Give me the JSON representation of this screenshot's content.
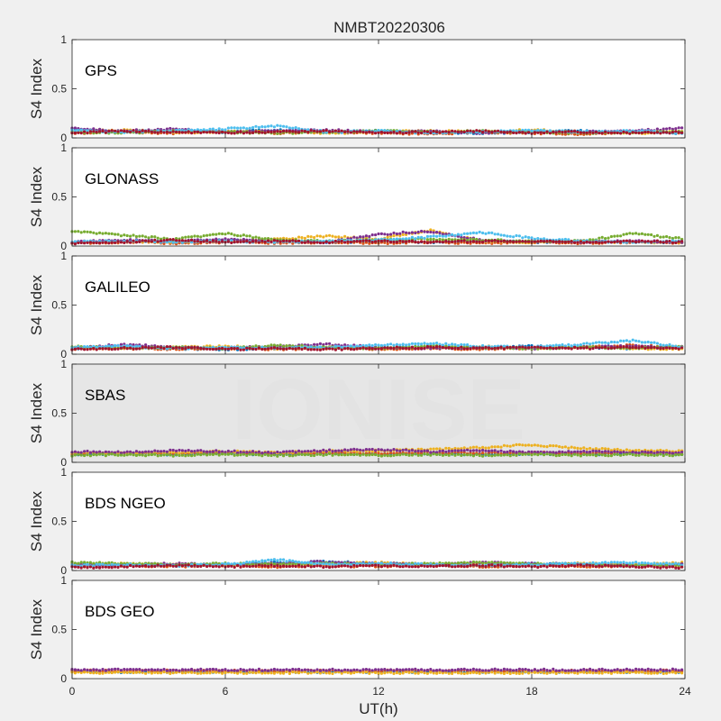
{
  "figure_title": "NMBT20220306",
  "watermark": "IONISE",
  "colors": {
    "background": "#f0f0f0",
    "axes_bg": "#ffffff",
    "sbas_axes_bg": "#e6e6e6",
    "axis": "#262626",
    "series": [
      "#0072BD",
      "#D95319",
      "#EDB120",
      "#7E2F8E",
      "#77AC30",
      "#4DBEEE",
      "#A2142F"
    ]
  },
  "chart_data": [
    {
      "type": "scatter",
      "panel_label": "GPS",
      "ylabel": "S4 Index",
      "xlabel": "",
      "xlim": [
        0,
        24
      ],
      "ylim": [
        0,
        1
      ],
      "xticks": [
        "0",
        "6",
        "12",
        "18",
        "24"
      ],
      "yticks": [
        "0",
        "0.5",
        "1"
      ],
      "series": [
        {
          "values": [
            0.09,
            0.06,
            0.07,
            0.06,
            0.08,
            0.06,
            0.07,
            0.06,
            0.05,
            0.06,
            0.07,
            0.06,
            0.05
          ]
        },
        {
          "values": [
            0.05,
            0.06,
            0.05,
            0.07,
            0.05,
            0.06,
            0.05,
            0.04,
            0.06,
            0.05,
            0.04,
            0.06,
            0.05
          ]
        },
        {
          "values": [
            0.07,
            0.08,
            0.06,
            0.06,
            0.07,
            0.05,
            0.06,
            0.07,
            0.06,
            0.08,
            0.06,
            0.05,
            0.06
          ]
        },
        {
          "values": [
            0.1,
            0.07,
            0.09,
            0.06,
            0.07,
            0.08,
            0.06,
            0.07,
            0.05,
            0.07,
            0.06,
            0.07,
            0.1
          ]
        },
        {
          "values": [
            0.06,
            0.05,
            0.07,
            0.06,
            0.05,
            0.06,
            0.07,
            0.06,
            0.07,
            0.06,
            0.05,
            0.06,
            0.06
          ]
        },
        {
          "values": [
            0.08,
            0.06,
            0.07,
            0.09,
            0.12,
            0.06,
            0.07,
            0.05,
            0.06,
            0.08,
            0.06,
            0.07,
            0.05
          ]
        },
        {
          "values": [
            0.05,
            0.07,
            0.06,
            0.05,
            0.06,
            0.07,
            0.05,
            0.06,
            0.07,
            0.05,
            0.06,
            0.05,
            0.06
          ]
        }
      ]
    },
    {
      "type": "scatter",
      "panel_label": "GLONASS",
      "ylabel": "S4 Index",
      "xlabel": "",
      "xlim": [
        0,
        24
      ],
      "ylim": [
        0,
        1
      ],
      "xticks": [
        "0",
        "6",
        "12",
        "18",
        "24"
      ],
      "yticks": [
        "0",
        "0.5",
        "1"
      ],
      "series": [
        {
          "values": [
            0.04,
            0.05,
            0.04,
            0.06,
            0.05,
            0.04,
            0.05,
            0.04,
            0.05,
            0.04,
            0.05,
            0.04,
            0.04
          ]
        },
        {
          "values": [
            0.03,
            0.04,
            0.03,
            0.04,
            0.03,
            0.04,
            0.03,
            0.04,
            0.03,
            0.04,
            0.03,
            0.04,
            0.03
          ]
        },
        {
          "values": [
            0.03,
            0.05,
            0.04,
            0.05,
            0.07,
            0.1,
            0.07,
            0.16,
            0.05,
            0.04,
            0.05,
            0.04,
            0.04
          ]
        },
        {
          "values": [
            0.04,
            0.06,
            0.05,
            0.07,
            0.05,
            0.04,
            0.12,
            0.15,
            0.06,
            0.05,
            0.04,
            0.05,
            0.04
          ]
        },
        {
          "values": [
            0.15,
            0.11,
            0.07,
            0.13,
            0.06,
            0.05,
            0.06,
            0.07,
            0.06,
            0.05,
            0.05,
            0.13,
            0.07
          ]
        },
        {
          "values": [
            0.04,
            0.05,
            0.04,
            0.05,
            0.04,
            0.05,
            0.06,
            0.09,
            0.14,
            0.08,
            0.05,
            0.04,
            0.05
          ]
        },
        {
          "values": [
            0.03,
            0.04,
            0.06,
            0.04,
            0.05,
            0.04,
            0.05,
            0.04,
            0.05,
            0.05,
            0.04,
            0.05,
            0.04
          ]
        }
      ]
    },
    {
      "type": "scatter",
      "panel_label": "GALILEO",
      "ylabel": "S4 Index",
      "xlabel": "",
      "xlim": [
        0,
        24
      ],
      "ylim": [
        0,
        1
      ],
      "xticks": [
        "0",
        "6",
        "12",
        "18",
        "24"
      ],
      "yticks": [
        "0",
        "0.5",
        "1"
      ],
      "series": [
        {
          "values": [
            0.06,
            0.08,
            0.06,
            0.05,
            0.06,
            0.07,
            0.06,
            0.07,
            0.06,
            0.08,
            0.07,
            0.06,
            0.07
          ]
        },
        {
          "values": [
            0.05,
            0.06,
            0.05,
            0.06,
            0.05,
            0.06,
            0.05,
            0.06,
            0.05,
            0.06,
            0.07,
            0.09,
            0.06
          ]
        },
        {
          "values": [
            0.07,
            0.06,
            0.07,
            0.08,
            0.06,
            0.07,
            0.06,
            0.07,
            0.08,
            0.06,
            0.07,
            0.06,
            0.05
          ]
        },
        {
          "values": [
            0.06,
            0.1,
            0.07,
            0.06,
            0.08,
            0.1,
            0.07,
            0.06,
            0.07,
            0.06,
            0.07,
            0.08,
            0.07
          ]
        },
        {
          "values": [
            0.08,
            0.06,
            0.07,
            0.06,
            0.09,
            0.07,
            0.06,
            0.08,
            0.07,
            0.06,
            0.07,
            0.06,
            0.08
          ]
        },
        {
          "values": [
            0.07,
            0.08,
            0.06,
            0.07,
            0.06,
            0.07,
            0.09,
            0.11,
            0.08,
            0.07,
            0.1,
            0.14,
            0.07
          ]
        },
        {
          "values": [
            0.05,
            0.06,
            0.07,
            0.05,
            0.06,
            0.05,
            0.06,
            0.07,
            0.06,
            0.07,
            0.06,
            0.07,
            0.06
          ]
        }
      ]
    },
    {
      "type": "scatter",
      "panel_label": "SBAS",
      "ylabel": "S4 Index",
      "xlabel": "",
      "xlim": [
        0,
        24
      ],
      "ylim": [
        0,
        1
      ],
      "xticks": [
        "0",
        "6",
        "12",
        "18",
        "24"
      ],
      "yticks": [
        "0",
        "0.5",
        "1"
      ],
      "series": [
        {
          "values": [
            0.08,
            0.09,
            0.08,
            0.09,
            0.08,
            0.09,
            0.08,
            0.09,
            0.08,
            0.09,
            0.08,
            0.09,
            0.08
          ]
        },
        {
          "values": [
            0.09,
            0.1,
            0.09,
            0.1,
            0.09,
            0.1,
            0.09,
            0.1,
            0.09,
            0.1,
            0.09,
            0.1,
            0.09
          ]
        },
        {
          "values": [
            0.1,
            0.09,
            0.1,
            0.11,
            0.1,
            0.11,
            0.12,
            0.13,
            0.15,
            0.18,
            0.14,
            0.12,
            0.11
          ]
        },
        {
          "values": [
            0.11,
            0.1,
            0.12,
            0.11,
            0.1,
            0.12,
            0.13,
            0.11,
            0.12,
            0.1,
            0.11,
            0.1,
            0.1
          ]
        },
        {
          "values": [
            0.07,
            0.08,
            0.07,
            0.08,
            0.07,
            0.08,
            0.07,
            0.08,
            0.07,
            0.08,
            0.07,
            0.08,
            0.07
          ]
        }
      ]
    },
    {
      "type": "scatter",
      "panel_label": "BDS NGEO",
      "ylabel": "S4 Index",
      "xlabel": "",
      "xlim": [
        0,
        24
      ],
      "ylim": [
        0,
        1
      ],
      "xticks": [
        "0",
        "6",
        "12",
        "18",
        "24"
      ],
      "yticks": [
        "0",
        "0.5",
        "1"
      ],
      "series": [
        {
          "values": [
            0.07,
            0.06,
            0.05,
            0.06,
            0.08,
            0.09,
            0.07,
            0.06,
            0.05,
            0.07,
            0.06,
            0.05,
            0.06
          ]
        },
        {
          "values": [
            0.04,
            0.05,
            0.04,
            0.05,
            0.04,
            0.05,
            0.04,
            0.05,
            0.04,
            0.05,
            0.04,
            0.05,
            0.04
          ]
        },
        {
          "values": [
            0.06,
            0.07,
            0.06,
            0.05,
            0.06,
            0.07,
            0.08,
            0.06,
            0.07,
            0.06,
            0.07,
            0.06,
            0.08
          ]
        },
        {
          "values": [
            0.05,
            0.06,
            0.07,
            0.06,
            0.07,
            0.09,
            0.07,
            0.06,
            0.08,
            0.07,
            0.06,
            0.05,
            0.06
          ]
        },
        {
          "values": [
            0.08,
            0.07,
            0.06,
            0.07,
            0.06,
            0.07,
            0.06,
            0.07,
            0.08,
            0.07,
            0.06,
            0.05,
            0.06
          ]
        },
        {
          "values": [
            0.05,
            0.06,
            0.05,
            0.06,
            0.11,
            0.06,
            0.07,
            0.06,
            0.05,
            0.06,
            0.07,
            0.08,
            0.06
          ]
        },
        {
          "values": [
            0.03,
            0.04,
            0.05,
            0.04,
            0.05,
            0.04,
            0.05,
            0.04,
            0.05,
            0.04,
            0.05,
            0.04,
            0.03
          ]
        }
      ]
    },
    {
      "type": "scatter",
      "panel_label": "BDS GEO",
      "ylabel": "S4 Index",
      "xlabel": "UT(h)",
      "xlim": [
        0,
        24
      ],
      "ylim": [
        0,
        1
      ],
      "xticks": [
        "0",
        "6",
        "12",
        "18",
        "24"
      ],
      "yticks": [
        "0",
        "0.5",
        "1"
      ],
      "series": [
        {
          "values": [
            0.07,
            0.07,
            0.07,
            0.07,
            0.07,
            0.07,
            0.07,
            0.07,
            0.07,
            0.07,
            0.07,
            0.07,
            0.07
          ]
        },
        {
          "values": [
            0.08,
            0.08,
            0.08,
            0.08,
            0.08,
            0.08,
            0.08,
            0.08,
            0.08,
            0.08,
            0.08,
            0.08,
            0.08
          ]
        },
        {
          "values": [
            0.06,
            0.06,
            0.06,
            0.06,
            0.06,
            0.06,
            0.06,
            0.06,
            0.06,
            0.06,
            0.06,
            0.06,
            0.06
          ]
        },
        {
          "values": [
            0.09,
            0.09,
            0.09,
            0.09,
            0.09,
            0.09,
            0.09,
            0.09,
            0.09,
            0.09,
            0.09,
            0.09,
            0.09
          ]
        }
      ]
    }
  ]
}
